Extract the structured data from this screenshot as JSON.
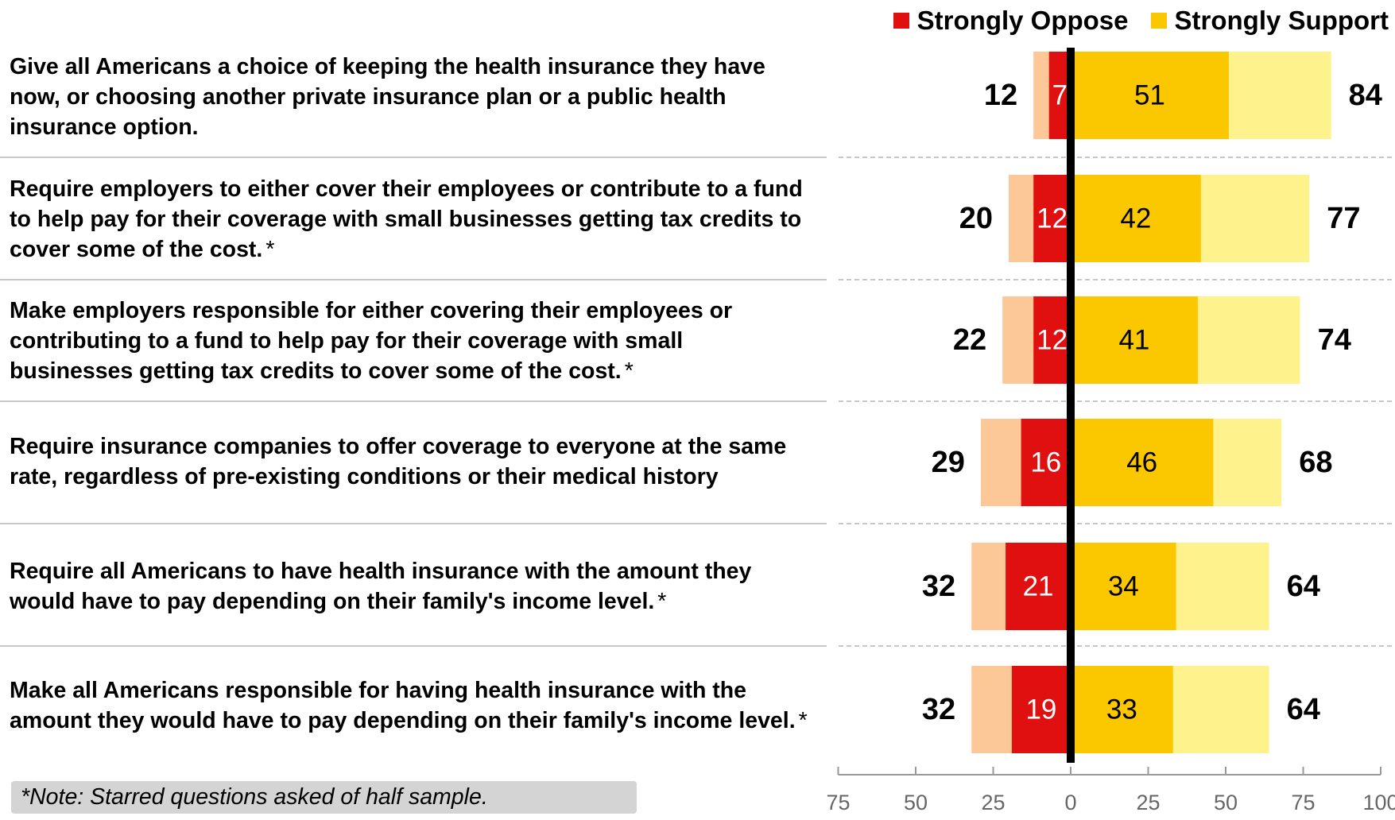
{
  "legend": {
    "oppose_label": "Strongly Oppose",
    "support_label": "Strongly Support"
  },
  "note": "*Note: Starred questions asked of half sample.",
  "rows": [
    {
      "text": "Give all Americans a choice of keeping the health insurance they have now, or choosing another private insurance plan or a public health insurance option.",
      "star": ""
    },
    {
      "text": "Require employers to either cover their employees or contribute to a fund to help pay for their coverage with small businesses getting tax credits to cover some of the cost.",
      "star": "*"
    },
    {
      "text": "Make employers responsible for either covering their employees or contributing to a fund to help pay for their coverage with small businesses getting tax credits to cover some of the cost.",
      "star": "*"
    },
    {
      "text": "Require insurance companies to offer coverage to everyone at the same rate, regardless of pre-existing conditions or their medical history",
      "star": ""
    },
    {
      "text": "Require all Americans to have health insurance with the amount they would have to pay depending on their family's income level.",
      "star": "*"
    },
    {
      "text": "Make all Americans responsible for having health insurance with the amount they would have to pay depending on their family's income level.",
      "star": "*"
    }
  ],
  "chart_data": {
    "type": "bar",
    "orientation": "horizontal-diverging",
    "categories": [
      "Give all Americans a choice of keeping the health insurance they have now, or choosing another private insurance plan or a public health insurance option.",
      "Require employers to either cover their employees or contribute to a fund to help pay for their coverage with small businesses getting tax credits to cover some of the cost.",
      "Make employers responsible for either covering their employees or contributing to a fund to help pay for their coverage with small businesses getting tax credits to cover some of the cost.",
      "Require insurance companies to offer coverage to everyone at the same rate, regardless of pre-existing conditions or their medical history",
      "Require all Americans to have health insurance with the amount they would have to pay depending on their family's income level.",
      "Make all Americans responsible for having health insurance with the amount they would have to pay depending on their family's income level."
    ],
    "series": [
      {
        "name": "Strongly Oppose",
        "values": [
          7,
          12,
          12,
          16,
          21,
          19
        ],
        "color": "#e01010"
      },
      {
        "values": [
          12,
          20,
          22,
          29,
          32,
          32
        ],
        "color": "#fcc898"
      },
      {
        "name": "Strongly Support",
        "values": [
          51,
          42,
          41,
          46,
          34,
          33
        ],
        "color": "#fbc800"
      },
      {
        "values": [
          84,
          77,
          74,
          68,
          64,
          64
        ],
        "color": "#fef28c"
      }
    ],
    "oppose_totals": [
      12,
      20,
      22,
      29,
      32,
      32
    ],
    "support_totals": [
      84,
      77,
      74,
      68,
      64,
      64
    ],
    "xlim": [
      -75,
      100
    ],
    "xticks": [
      -75,
      -50,
      -25,
      0,
      25,
      50,
      75,
      100
    ],
    "xtick_labels": [
      "75",
      "50",
      "25",
      "0",
      "25",
      "50",
      "75",
      "100"
    ],
    "title": "",
    "xlabel": "",
    "ylabel": "",
    "legend_position": "top-right",
    "grid": false
  }
}
